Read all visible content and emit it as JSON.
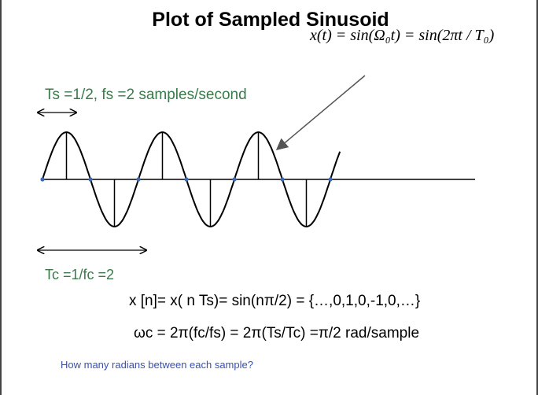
{
  "title": "Plot of Sampled Sinusoid",
  "formula": "x(t) = sin(Ω₀t) = sin(2πt / T₀)",
  "labels": {
    "ts": "Ts =1/2,   fs =2 samples/second",
    "tc": "Tc =1/fc =2",
    "xn": "x [n]= x( n Ts)= sin(nπ/2) = {…,0,1,0,-1,0,…}",
    "wc": "ωc = 2π(fc/fs) = 2π(Ts/Tc)  =π/2  rad/sample",
    "question": "How many radians between each sample?"
  },
  "colors": {
    "label_green": "#3a7a4a",
    "question_blue": "#3a50b0",
    "sample_dot": "#3a6ab0"
  },
  "chart_data": {
    "type": "line",
    "title": "Plot of Sampled Sinusoid",
    "signal": "sin(2*pi*t/Tc)",
    "Tc": 2,
    "Ts": 0.5,
    "fs": 2,
    "t_range": [
      0,
      6.2
    ],
    "samples": {
      "n": [
        0,
        1,
        2,
        3,
        4,
        5,
        6,
        7,
        8,
        9,
        10,
        11,
        12
      ],
      "values": [
        0,
        1,
        0,
        -1,
        0,
        1,
        0,
        -1,
        0,
        1,
        0,
        -1,
        0
      ]
    }
  }
}
